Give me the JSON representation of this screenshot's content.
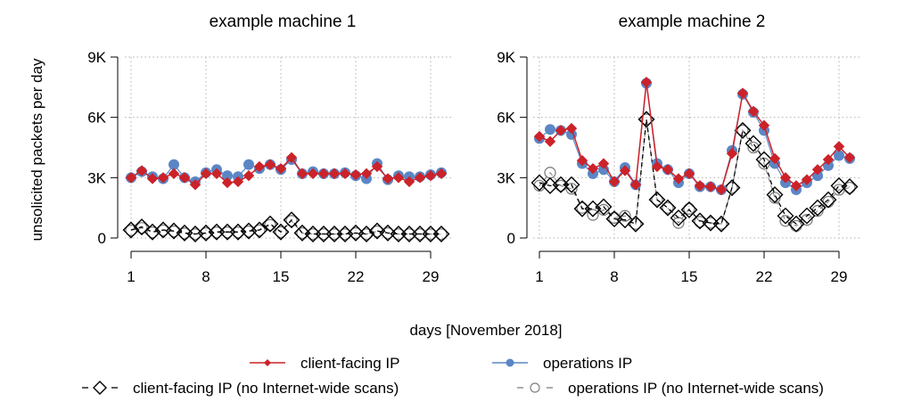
{
  "chart_data": [
    {
      "type": "line",
      "title": "example machine 1",
      "xlabel": "days [November 2018]",
      "ylabel": "unsolicited packets per day",
      "x": [
        1,
        2,
        3,
        4,
        5,
        6,
        7,
        8,
        9,
        10,
        11,
        12,
        13,
        14,
        15,
        16,
        17,
        18,
        19,
        20,
        21,
        22,
        23,
        24,
        25,
        26,
        27,
        28,
        29,
        30
      ],
      "xticks": [
        1,
        8,
        15,
        22,
        29
      ],
      "xtick_labels": [
        "1",
        "8",
        "15",
        "22",
        "29"
      ],
      "ylim": [
        0,
        9000
      ],
      "yticks": [
        0,
        3000,
        6000,
        9000
      ],
      "ytick_labels": [
        "0",
        "3K",
        "6K",
        "9K"
      ],
      "grid": true,
      "series": [
        {
          "name": "client-facing IP",
          "key": "client",
          "values": [
            3000,
            3350,
            2950,
            3000,
            3200,
            3000,
            2650,
            3200,
            3200,
            2750,
            2800,
            3100,
            3550,
            3650,
            3450,
            4000,
            3200,
            3200,
            3200,
            3200,
            3200,
            3150,
            3200,
            3550,
            2950,
            3000,
            2800,
            3000,
            3100,
            3200
          ]
        },
        {
          "name": "operations IP",
          "key": "ops",
          "values": [
            3000,
            3300,
            3050,
            2950,
            3650,
            3000,
            2800,
            3250,
            3400,
            3100,
            3050,
            3650,
            3450,
            3650,
            3400,
            3900,
            3200,
            3300,
            3200,
            3200,
            3250,
            3100,
            2950,
            3700,
            2900,
            3100,
            3050,
            3050,
            3150,
            3250
          ]
        },
        {
          "name": "client-facing IP (no Internet-wide scans)",
          "key": "client_ns",
          "values": [
            400,
            550,
            300,
            400,
            350,
            250,
            200,
            250,
            300,
            300,
            300,
            350,
            400,
            700,
            300,
            900,
            250,
            200,
            200,
            200,
            200,
            250,
            200,
            350,
            250,
            200,
            200,
            200,
            200,
            200
          ]
        },
        {
          "name": "operations IP (no Internet-wide scans)",
          "key": "ops_ns",
          "values": [
            380,
            500,
            280,
            380,
            330,
            230,
            190,
            240,
            280,
            280,
            280,
            330,
            380,
            650,
            290,
            850,
            240,
            190,
            190,
            190,
            190,
            240,
            190,
            330,
            240,
            190,
            190,
            190,
            190,
            190
          ]
        }
      ]
    },
    {
      "type": "line",
      "title": "example machine 2",
      "xlabel": "days [November 2018]",
      "ylabel": "",
      "x": [
        1,
        2,
        3,
        4,
        5,
        6,
        7,
        8,
        9,
        10,
        11,
        12,
        13,
        14,
        15,
        16,
        17,
        18,
        19,
        20,
        21,
        22,
        23,
        24,
        25,
        26,
        27,
        28,
        29,
        30
      ],
      "xticks": [
        1,
        8,
        15,
        22,
        29
      ],
      "xtick_labels": [
        "1",
        "8",
        "15",
        "22",
        "29"
      ],
      "ylim": [
        0,
        9000
      ],
      "yticks": [
        0,
        3000,
        6000,
        9000
      ],
      "ytick_labels": [
        "0",
        "3K",
        "6K",
        "9K"
      ],
      "grid": true,
      "series": [
        {
          "name": "client-facing IP",
          "key": "client",
          "values": [
            5050,
            4800,
            5350,
            5450,
            3850,
            3450,
            3700,
            2800,
            3350,
            2650,
            7750,
            3550,
            3400,
            2950,
            3200,
            2600,
            2550,
            2400,
            4200,
            7200,
            6300,
            5600,
            3950,
            3000,
            2600,
            2900,
            3400,
            3900,
            4550,
            4000
          ]
        },
        {
          "name": "operations IP",
          "key": "ops",
          "values": [
            4950,
            5400,
            5350,
            5150,
            3700,
            3200,
            3400,
            2800,
            3500,
            2650,
            7700,
            3700,
            3400,
            2750,
            3200,
            2550,
            2550,
            2400,
            4350,
            7150,
            6250,
            5350,
            3700,
            2750,
            2400,
            2750,
            3100,
            3600,
            4100,
            3950
          ]
        },
        {
          "name": "client-facing IP (no Internet-wide scans)",
          "key": "client_ns",
          "values": [
            2750,
            2600,
            2650,
            2650,
            1450,
            1450,
            1550,
            950,
            900,
            700,
            5900,
            1900,
            1500,
            1000,
            1400,
            850,
            750,
            700,
            2500,
            5350,
            4700,
            3900,
            2150,
            1100,
            700,
            1100,
            1500,
            1900,
            2600,
            2550
          ]
        },
        {
          "name": "operations IP (no Internet-wide scans)",
          "key": "ops_ns",
          "values": [
            2600,
            3250,
            2600,
            2450,
            1500,
            1150,
            1400,
            1000,
            1100,
            700,
            5900,
            1900,
            1500,
            750,
            1450,
            800,
            750,
            700,
            2500,
            5350,
            4500,
            3700,
            2000,
            850,
            600,
            900,
            1350,
            1800,
            2400,
            2500
          ]
        }
      ]
    }
  ],
  "legend": {
    "placement": "bottom",
    "items": [
      {
        "label": "client-facing IP",
        "key": "client"
      },
      {
        "label": "operations IP",
        "key": "ops"
      },
      {
        "label": "client-facing IP (no Internet-wide scans)",
        "key": "client_ns"
      },
      {
        "label": "operations IP (no Internet-wide scans)",
        "key": "ops_ns"
      }
    ]
  },
  "colors": {
    "client": "#cc2229",
    "ops": "#5b86c5",
    "client_ns": "#000000",
    "ops_ns": "#808080",
    "grid": "#b0b0b0"
  }
}
